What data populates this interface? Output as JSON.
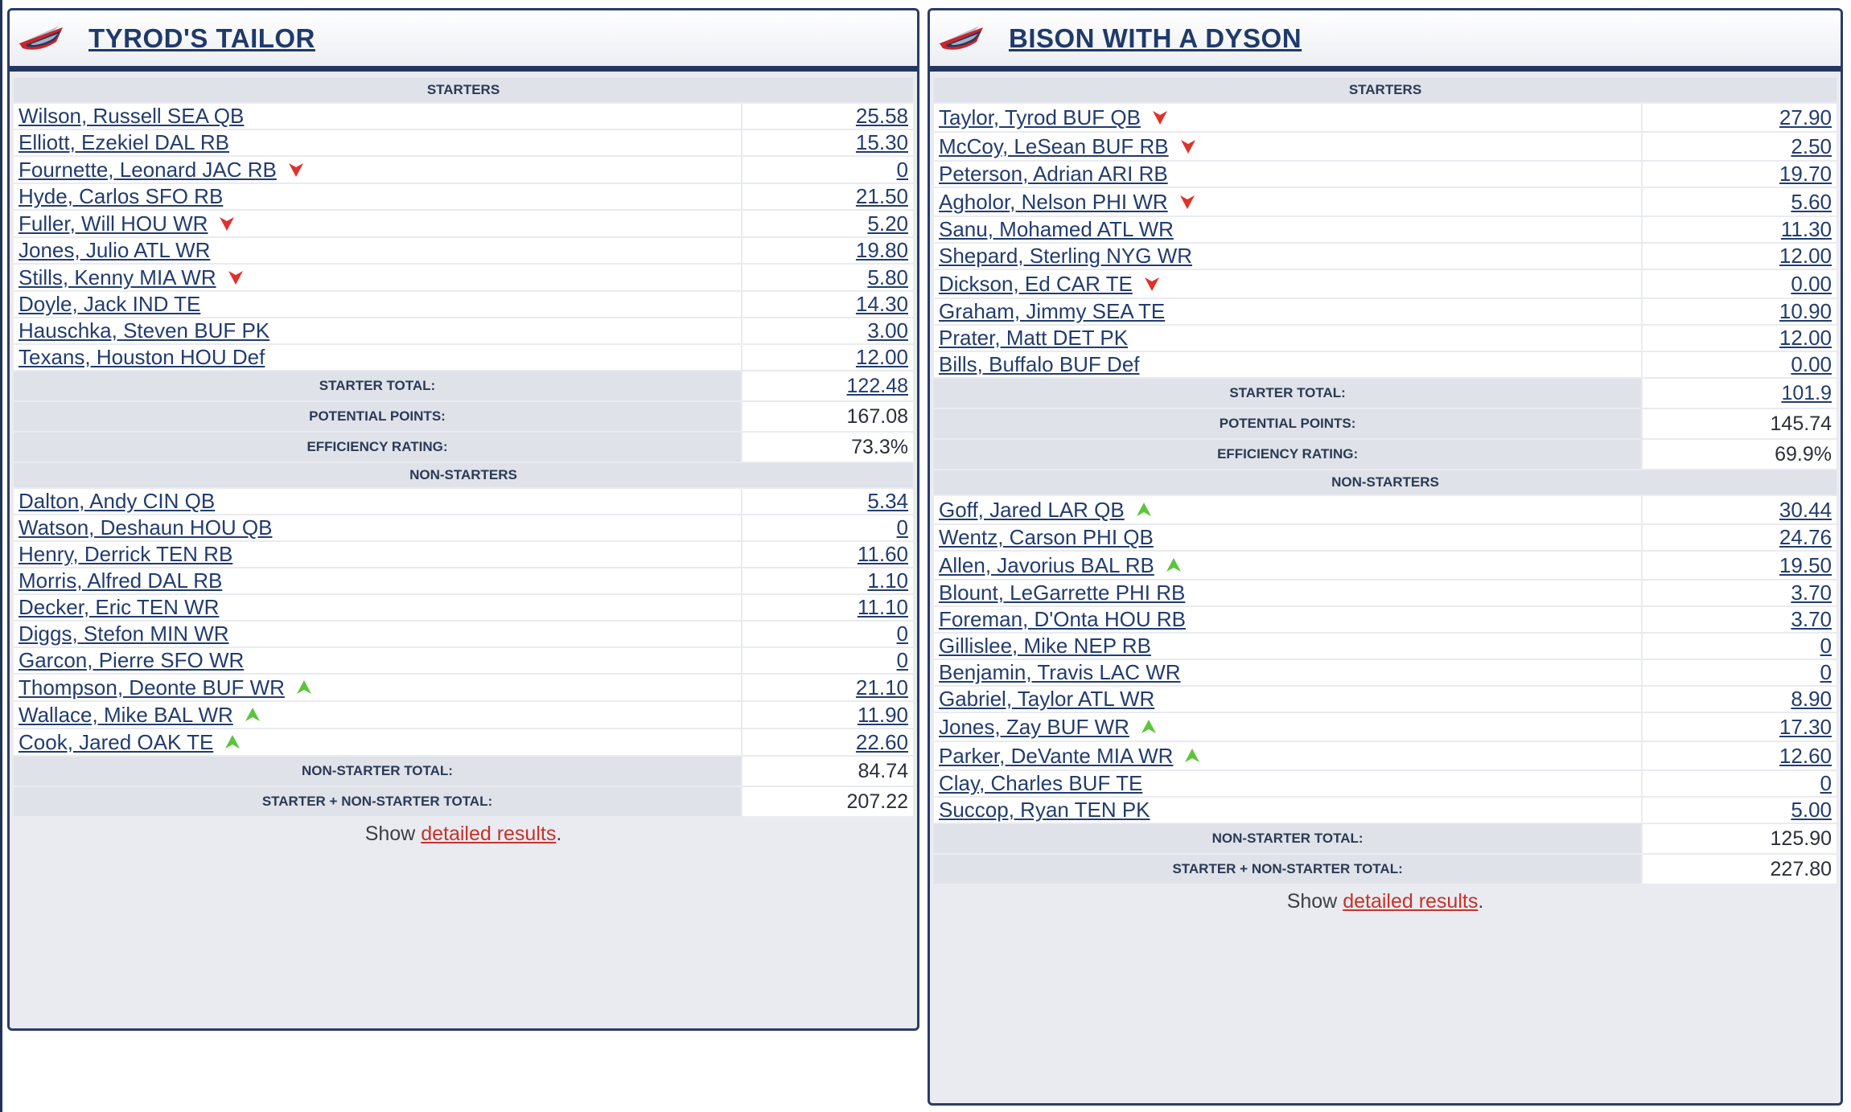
{
  "colors": {
    "navy": "#24365f",
    "link": "#223c6e",
    "down_arrow": "#e0312a",
    "up_arrow": "#5cc43c",
    "detail_link": "#c4322a"
  },
  "left": {
    "team_name": "TYROD'S TAILOR",
    "starters_header": "STARTERS",
    "starters": [
      {
        "name": "Wilson, Russell SEA QB",
        "points": "25.58",
        "arrow": ""
      },
      {
        "name": "Elliott, Ezekiel DAL RB",
        "points": "15.30",
        "arrow": ""
      },
      {
        "name": "Fournette, Leonard JAC RB",
        "points": "0",
        "arrow": "down"
      },
      {
        "name": "Hyde, Carlos SFO RB",
        "points": "21.50",
        "arrow": ""
      },
      {
        "name": "Fuller, Will HOU WR",
        "points": "5.20",
        "arrow": "down"
      },
      {
        "name": "Jones, Julio ATL WR",
        "points": "19.80",
        "arrow": ""
      },
      {
        "name": "Stills, Kenny MIA WR",
        "points": "5.80",
        "arrow": "down"
      },
      {
        "name": "Doyle, Jack IND TE",
        "points": "14.30",
        "arrow": ""
      },
      {
        "name": "Hauschka, Steven BUF PK",
        "points": "3.00",
        "arrow": ""
      },
      {
        "name": "Texans, Houston HOU Def",
        "points": "12.00",
        "arrow": ""
      }
    ],
    "starter_total_label": "STARTER TOTAL:",
    "starter_total": "122.48",
    "potential_label": "POTENTIAL POINTS:",
    "potential": "167.08",
    "efficiency_label": "EFFICIENCY RATING:",
    "efficiency": "73.3%",
    "nonstarters_header": "NON-STARTERS",
    "nonstarters": [
      {
        "name": "Dalton, Andy CIN QB",
        "points": "5.34",
        "arrow": ""
      },
      {
        "name": "Watson, Deshaun HOU QB",
        "points": "0",
        "arrow": ""
      },
      {
        "name": "Henry, Derrick TEN RB",
        "points": "11.60",
        "arrow": ""
      },
      {
        "name": "Morris, Alfred DAL RB",
        "points": "1.10",
        "arrow": ""
      },
      {
        "name": "Decker, Eric TEN WR",
        "points": "11.10",
        "arrow": ""
      },
      {
        "name": "Diggs, Stefon MIN WR",
        "points": "0",
        "arrow": ""
      },
      {
        "name": "Garcon, Pierre SFO WR",
        "points": "0",
        "arrow": ""
      },
      {
        "name": "Thompson, Deonte BUF WR",
        "points": "21.10",
        "arrow": "up"
      },
      {
        "name": "Wallace, Mike BAL WR",
        "points": "11.90",
        "arrow": "up"
      },
      {
        "name": "Cook, Jared OAK TE",
        "points": "22.60",
        "arrow": "up"
      }
    ],
    "nonstarter_total_label": "NON-STARTER TOTAL:",
    "nonstarter_total": "84.74",
    "combined_label": "STARTER + NON-STARTER TOTAL:",
    "combined_total": "207.22",
    "show_prefix": "Show ",
    "show_link": "detailed results",
    "show_suffix": "."
  },
  "right": {
    "team_name": "BISON WITH A DYSON",
    "starters_header": "STARTERS",
    "starters": [
      {
        "name": "Taylor, Tyrod BUF QB",
        "points": "27.90",
        "arrow": "down"
      },
      {
        "name": "McCoy, LeSean BUF RB",
        "points": "2.50",
        "arrow": "down"
      },
      {
        "name": "Peterson, Adrian ARI RB",
        "points": "19.70",
        "arrow": ""
      },
      {
        "name": "Agholor, Nelson PHI WR",
        "points": "5.60",
        "arrow": "down"
      },
      {
        "name": "Sanu, Mohamed ATL WR",
        "points": "11.30",
        "arrow": ""
      },
      {
        "name": "Shepard, Sterling NYG WR",
        "points": "12.00",
        "arrow": ""
      },
      {
        "name": "Dickson, Ed CAR TE",
        "points": "0.00",
        "arrow": "down"
      },
      {
        "name": "Graham, Jimmy SEA TE",
        "points": "10.90",
        "arrow": ""
      },
      {
        "name": "Prater, Matt DET PK",
        "points": "12.00",
        "arrow": ""
      },
      {
        "name": "Bills, Buffalo BUF Def",
        "points": "0.00",
        "arrow": ""
      }
    ],
    "starter_total_label": "STARTER TOTAL:",
    "starter_total": "101.9",
    "potential_label": "POTENTIAL POINTS:",
    "potential": "145.74",
    "efficiency_label": "EFFICIENCY RATING:",
    "efficiency": "69.9%",
    "nonstarters_header": "NON-STARTERS",
    "nonstarters": [
      {
        "name": "Goff, Jared LAR QB",
        "points": "30.44",
        "arrow": "up"
      },
      {
        "name": "Wentz, Carson PHI QB",
        "points": "24.76",
        "arrow": ""
      },
      {
        "name": "Allen, Javorius BAL RB",
        "points": "19.50",
        "arrow": "up"
      },
      {
        "name": "Blount, LeGarrette PHI RB",
        "points": "3.70",
        "arrow": ""
      },
      {
        "name": "Foreman, D'Onta HOU RB",
        "points": "3.70",
        "arrow": ""
      },
      {
        "name": "Gillislee, Mike NEP RB",
        "points": "0",
        "arrow": ""
      },
      {
        "name": "Benjamin, Travis LAC WR",
        "points": "0",
        "arrow": ""
      },
      {
        "name": "Gabriel, Taylor ATL WR",
        "points": "8.90",
        "arrow": ""
      },
      {
        "name": "Jones, Zay BUF WR",
        "points": "17.30",
        "arrow": "up"
      },
      {
        "name": "Parker, DeVante MIA WR",
        "points": "12.60",
        "arrow": "up"
      },
      {
        "name": "Clay, Charles BUF TE",
        "points": "0",
        "arrow": ""
      },
      {
        "name": "Succop, Ryan TEN PK",
        "points": "5.00",
        "arrow": ""
      }
    ],
    "nonstarter_total_label": "NON-STARTER TOTAL:",
    "nonstarter_total": "125.90",
    "combined_label": "STARTER + NON-STARTER TOTAL:",
    "combined_total": "227.80",
    "show_prefix": "Show ",
    "show_link": "detailed results",
    "show_suffix": "."
  }
}
